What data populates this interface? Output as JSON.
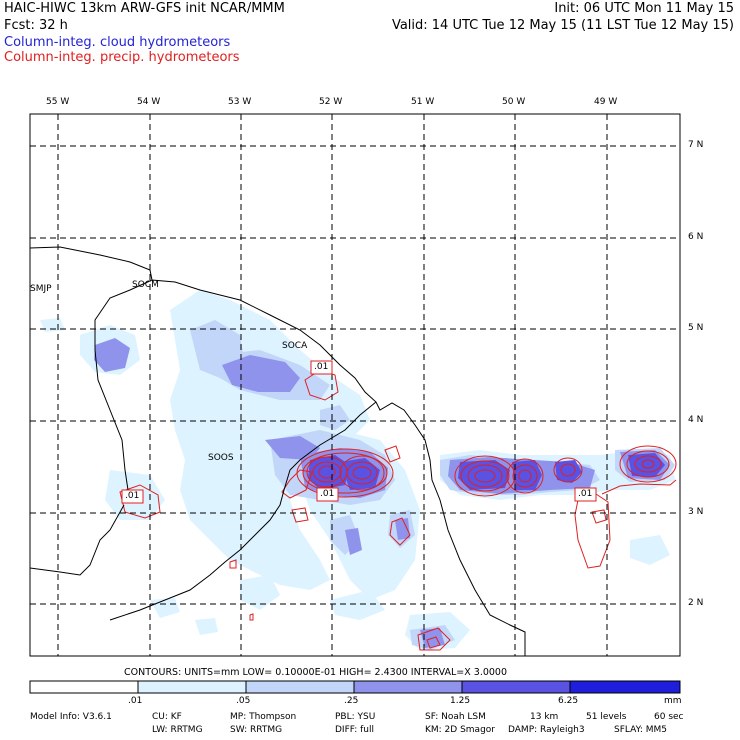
{
  "header": {
    "line1_left": "HAIC-HIWC 13km ARW-GFS init   NCAR/MMM",
    "line1_right": "Init: 06 UTC Mon 11 May 15",
    "line2_left": "Fcst:   32 h",
    "line2_right": "Valid: 14 UTC Tue 12 May 15 (11 LST Tue 12 May 15)",
    "field_cloud": "Column-integ. cloud hydrometeors",
    "field_precip": "Column-integ. precip. hydrometeors"
  },
  "map": {
    "lon_labels": [
      "55 W",
      "54 W",
      "53 W",
      "52 W",
      "51 W",
      "50 W",
      "49 W"
    ],
    "lat_labels": [
      "7 N",
      "6 N",
      "5 N",
      "4 N",
      "3 N",
      "2 N"
    ],
    "stations": [
      "SMJP",
      "SOCM",
      "SOCA",
      "SOOS"
    ],
    "contour_labels": [
      ".01",
      ".01",
      ".01",
      ".01"
    ]
  },
  "contours_line": "CONTOURS:  UNITS=mm   LOW= 0.10000E-01   HIGH=  2.4300      INTERVAL=X  3.0000",
  "colorbar": {
    "ticks": [
      ".01",
      ".05",
      ".25",
      "1.25",
      "6.25"
    ],
    "units": "mm",
    "colors": [
      "#ffffff",
      "#ddf3ff",
      "#c2d6fa",
      "#8f93ec",
      "#5a52e2",
      "#1e1edc"
    ]
  },
  "model_info": {
    "line1": [
      "Model Info: V3.6.1",
      "CU: KF",
      "MP: Thompson",
      "PBL: YSU",
      "SF: Noah LSM",
      "13 km",
      "51 levels",
      "60 sec"
    ],
    "line2": [
      "LW: RRTMG",
      "SW: RRTMG",
      "DIFF: full",
      "KM: 2D Smagor",
      "DAMP: Rayleigh3",
      "SFLAY: MM5"
    ]
  }
}
